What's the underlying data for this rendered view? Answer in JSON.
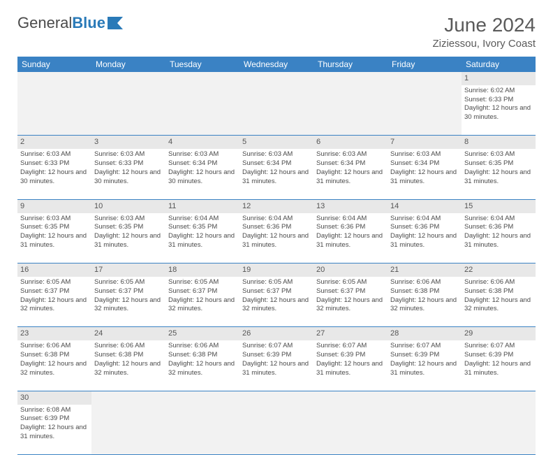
{
  "logo": {
    "text1": "General",
    "text2": "Blue"
  },
  "title": "June 2024",
  "location": "Ziziessou, Ivory Coast",
  "colors": {
    "header_bg": "#3a82c4",
    "header_text": "#ffffff",
    "daynum_bg": "#e8e8e8",
    "border": "#3a82c4",
    "logo_blue": "#2a7ab8"
  },
  "weekdays": [
    "Sunday",
    "Monday",
    "Tuesday",
    "Wednesday",
    "Thursday",
    "Friday",
    "Saturday"
  ],
  "weeks": [
    [
      null,
      null,
      null,
      null,
      null,
      null,
      {
        "n": "1",
        "sr": "6:02 AM",
        "ss": "6:33 PM",
        "dl": "12 hours and 30 minutes."
      }
    ],
    [
      {
        "n": "2",
        "sr": "6:03 AM",
        "ss": "6:33 PM",
        "dl": "12 hours and 30 minutes."
      },
      {
        "n": "3",
        "sr": "6:03 AM",
        "ss": "6:33 PM",
        "dl": "12 hours and 30 minutes."
      },
      {
        "n": "4",
        "sr": "6:03 AM",
        "ss": "6:34 PM",
        "dl": "12 hours and 30 minutes."
      },
      {
        "n": "5",
        "sr": "6:03 AM",
        "ss": "6:34 PM",
        "dl": "12 hours and 31 minutes."
      },
      {
        "n": "6",
        "sr": "6:03 AM",
        "ss": "6:34 PM",
        "dl": "12 hours and 31 minutes."
      },
      {
        "n": "7",
        "sr": "6:03 AM",
        "ss": "6:34 PM",
        "dl": "12 hours and 31 minutes."
      },
      {
        "n": "8",
        "sr": "6:03 AM",
        "ss": "6:35 PM",
        "dl": "12 hours and 31 minutes."
      }
    ],
    [
      {
        "n": "9",
        "sr": "6:03 AM",
        "ss": "6:35 PM",
        "dl": "12 hours and 31 minutes."
      },
      {
        "n": "10",
        "sr": "6:03 AM",
        "ss": "6:35 PM",
        "dl": "12 hours and 31 minutes."
      },
      {
        "n": "11",
        "sr": "6:04 AM",
        "ss": "6:35 PM",
        "dl": "12 hours and 31 minutes."
      },
      {
        "n": "12",
        "sr": "6:04 AM",
        "ss": "6:36 PM",
        "dl": "12 hours and 31 minutes."
      },
      {
        "n": "13",
        "sr": "6:04 AM",
        "ss": "6:36 PM",
        "dl": "12 hours and 31 minutes."
      },
      {
        "n": "14",
        "sr": "6:04 AM",
        "ss": "6:36 PM",
        "dl": "12 hours and 31 minutes."
      },
      {
        "n": "15",
        "sr": "6:04 AM",
        "ss": "6:36 PM",
        "dl": "12 hours and 31 minutes."
      }
    ],
    [
      {
        "n": "16",
        "sr": "6:05 AM",
        "ss": "6:37 PM",
        "dl": "12 hours and 32 minutes."
      },
      {
        "n": "17",
        "sr": "6:05 AM",
        "ss": "6:37 PM",
        "dl": "12 hours and 32 minutes."
      },
      {
        "n": "18",
        "sr": "6:05 AM",
        "ss": "6:37 PM",
        "dl": "12 hours and 32 minutes."
      },
      {
        "n": "19",
        "sr": "6:05 AM",
        "ss": "6:37 PM",
        "dl": "12 hours and 32 minutes."
      },
      {
        "n": "20",
        "sr": "6:05 AM",
        "ss": "6:37 PM",
        "dl": "12 hours and 32 minutes."
      },
      {
        "n": "21",
        "sr": "6:06 AM",
        "ss": "6:38 PM",
        "dl": "12 hours and 32 minutes."
      },
      {
        "n": "22",
        "sr": "6:06 AM",
        "ss": "6:38 PM",
        "dl": "12 hours and 32 minutes."
      }
    ],
    [
      {
        "n": "23",
        "sr": "6:06 AM",
        "ss": "6:38 PM",
        "dl": "12 hours and 32 minutes."
      },
      {
        "n": "24",
        "sr": "6:06 AM",
        "ss": "6:38 PM",
        "dl": "12 hours and 32 minutes."
      },
      {
        "n": "25",
        "sr": "6:06 AM",
        "ss": "6:38 PM",
        "dl": "12 hours and 32 minutes."
      },
      {
        "n": "26",
        "sr": "6:07 AM",
        "ss": "6:39 PM",
        "dl": "12 hours and 31 minutes."
      },
      {
        "n": "27",
        "sr": "6:07 AM",
        "ss": "6:39 PM",
        "dl": "12 hours and 31 minutes."
      },
      {
        "n": "28",
        "sr": "6:07 AM",
        "ss": "6:39 PM",
        "dl": "12 hours and 31 minutes."
      },
      {
        "n": "29",
        "sr": "6:07 AM",
        "ss": "6:39 PM",
        "dl": "12 hours and 31 minutes."
      }
    ],
    [
      {
        "n": "30",
        "sr": "6:08 AM",
        "ss": "6:39 PM",
        "dl": "12 hours and 31 minutes."
      },
      null,
      null,
      null,
      null,
      null,
      null
    ]
  ],
  "labels": {
    "sunrise": "Sunrise:",
    "sunset": "Sunset:",
    "daylight": "Daylight:"
  }
}
